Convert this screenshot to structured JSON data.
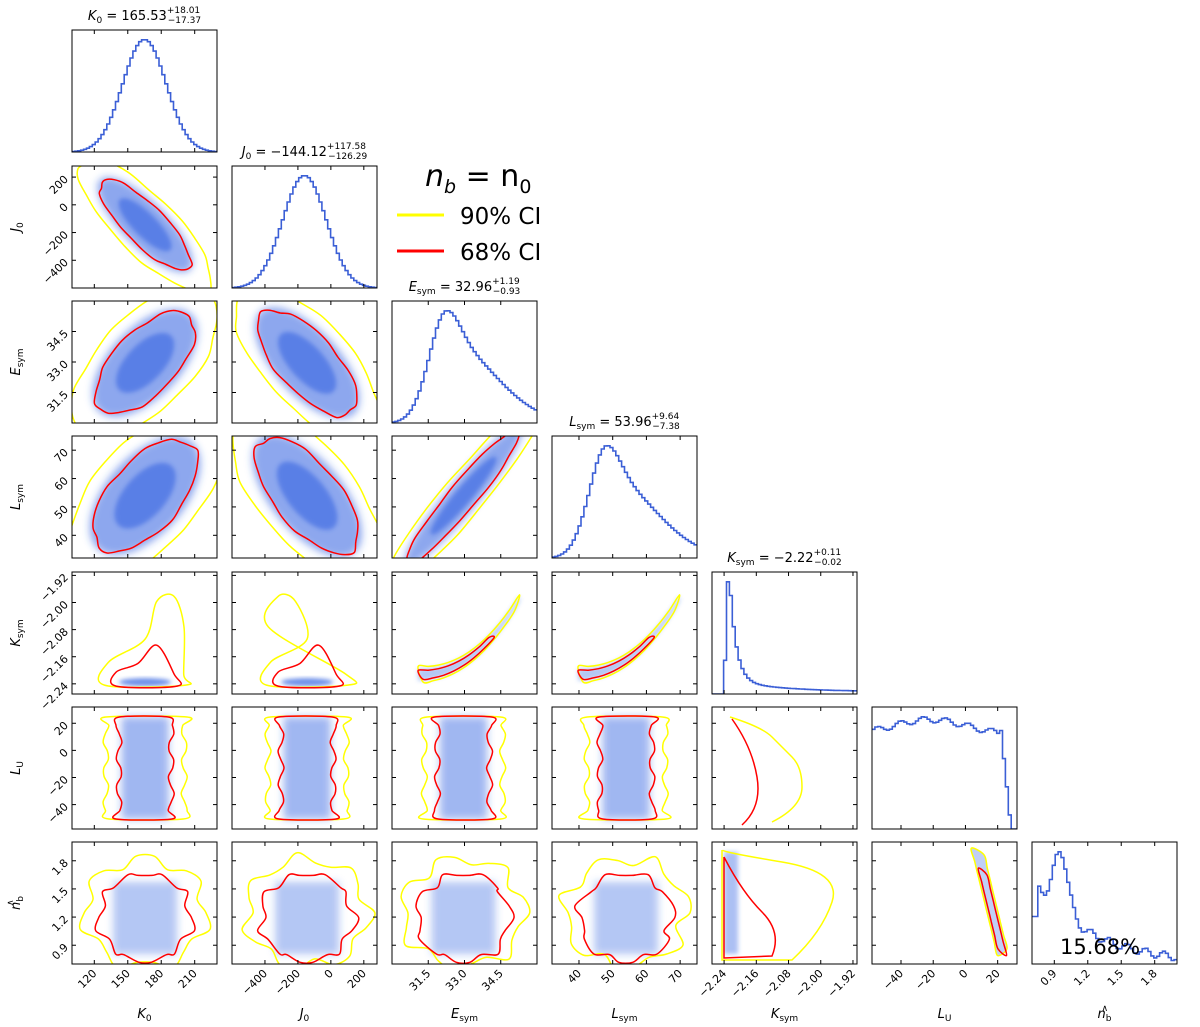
{
  "chart_data": {
    "type": "corner",
    "legend": {
      "title_base": "n",
      "title_sub": "b",
      "title_rest": " = n",
      "title_sub2": "0",
      "entries": [
        {
          "label": "90% CI",
          "color": "#ffff00"
        },
        {
          "label": "68% CI",
          "color": "#ff0000"
        }
      ]
    },
    "colors": {
      "hist": "#3b5fd6",
      "density": "#2f5fe0",
      "ci90": "#ffff00",
      "ci68": "#ff0000"
    },
    "params": [
      {
        "name": "K0",
        "label": "K",
        "label_sub": "0",
        "title": "K₀ = 165.53 (+18.01 / −17.37)",
        "title_main": "K",
        "title_sub": "0",
        "title_val": " = 165.53",
        "title_up": "+18.01",
        "title_dn": "−17.37",
        "range": [
          100,
          230
        ],
        "median": 165.53,
        "sigma": 17.7,
        "hist_shape": "normal",
        "ticks": [
          120,
          150,
          180,
          210
        ],
        "tick_labels": [
          "120",
          "150",
          "180",
          "210"
        ]
      },
      {
        "name": "J0",
        "label": "J",
        "label_sub": "0",
        "title": "J₀ = −144.12 (+117.58 / −126.29)",
        "title_main": "J",
        "title_sub": "0",
        "title_val": " = −144.12",
        "title_up": "+117.58",
        "title_dn": "−126.29",
        "range": [
          -600,
          280
        ],
        "median": -144.12,
        "sigma": 122,
        "hist_shape": "normal",
        "ticks": [
          -400,
          -200,
          0,
          200
        ],
        "tick_labels": [
          "−400",
          "−200",
          "0",
          "200"
        ]
      },
      {
        "name": "Esym",
        "label": "E",
        "label_sub": "sym",
        "title": "Esym = 32.96 (+1.19 / −0.93)",
        "title_main": "E",
        "title_sub": "sym",
        "title_val": " = 32.96",
        "title_up": "+1.19",
        "title_dn": "−0.93",
        "range": [
          30.0,
          36.0
        ],
        "median": 32.96,
        "sigma": 1.05,
        "hist_shape": "skew",
        "ticks": [
          31.5,
          33.0,
          34.5
        ],
        "tick_labels": [
          "31.5",
          "33.0",
          "34.5"
        ]
      },
      {
        "name": "Lsym",
        "label": "L",
        "label_sub": "sym",
        "title": "Lsym = 53.96 (+9.64 / −7.38)",
        "title_main": "L",
        "title_sub": "sym",
        "title_val": " = 53.96",
        "title_up": "+9.64",
        "title_dn": "−7.38",
        "range": [
          32,
          75
        ],
        "median": 53.96,
        "sigma": 8.5,
        "hist_shape": "skew",
        "ticks": [
          40,
          50,
          60,
          70
        ],
        "tick_labels": [
          "40",
          "50",
          "60",
          "70"
        ]
      },
      {
        "name": "Ksym",
        "label": "K",
        "label_sub": "sym",
        "title": "Ksym = −2.22 (+0.11 / −0.02)",
        "title_main": "K",
        "title_sub": "sym",
        "title_val": " = −2.22",
        "title_up": "+0.11",
        "title_dn": "−0.02",
        "range": [
          -2.27,
          -1.91
        ],
        "median": -2.22,
        "sigma": 0.06,
        "hist_shape": "spike",
        "ticks": [
          -2.24,
          -2.16,
          -2.08,
          -2.0,
          -1.92
        ],
        "tick_labels": [
          "−2.24",
          "−2.16",
          "−2.08",
          "−2.00",
          "−1.92"
        ]
      },
      {
        "name": "LU",
        "label": "L",
        "label_sub": "U",
        "title": "",
        "range": [
          -58,
          32
        ],
        "median": -10,
        "sigma": 25,
        "hist_shape": "plateau",
        "ticks": [
          -40,
          -20,
          0,
          20
        ],
        "tick_labels": [
          "−40",
          "−20",
          "0",
          "20"
        ]
      },
      {
        "name": "nb",
        "label": "n",
        "label_sub": "b",
        "label_sup": "∧",
        "title": "",
        "range": [
          0.7,
          2.0
        ],
        "median": 1.2,
        "sigma": 0.3,
        "hist_shape": "tail",
        "ticks": [
          0.9,
          1.2,
          1.5,
          1.8
        ],
        "tick_labels": [
          "0.9",
          "1.2",
          "1.5",
          "1.8"
        ],
        "annotation": "15.68%"
      }
    ]
  }
}
